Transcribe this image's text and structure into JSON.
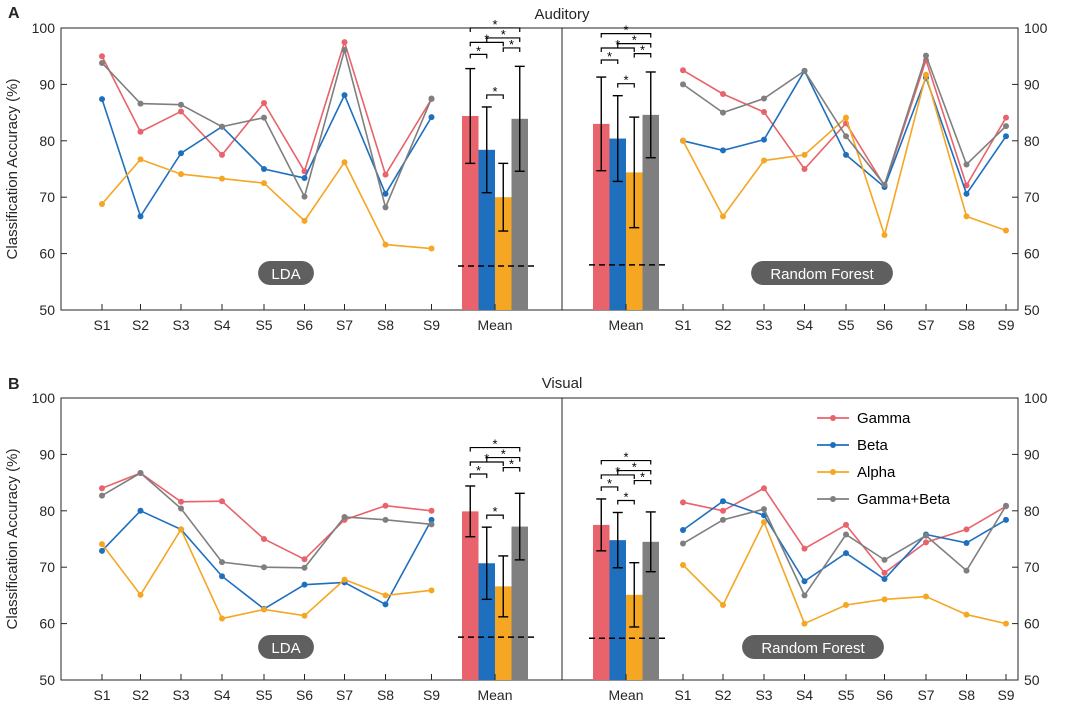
{
  "colors": {
    "Gamma": "#e8636b",
    "Beta": "#1f6fbf",
    "Alpha": "#f5a623",
    "Gamma+Beta": "#7f7f7f",
    "tag_bg": "#5f5f5f"
  },
  "star_symbol": "*",
  "legend": [
    "Gamma",
    "Beta",
    "Alpha",
    "Gamma+Beta"
  ],
  "chart_data": [
    {
      "type": "line",
      "panel_label": "A",
      "title": "Auditory",
      "ylabel": "Classification Accuracy (%)",
      "ylim": [
        50,
        100
      ],
      "yticks": [
        50,
        60,
        70,
        80,
        90,
        100
      ],
      "left": {
        "tag": "LDA",
        "categories": [
          "S1",
          "S2",
          "S3",
          "S4",
          "S5",
          "S6",
          "S7",
          "S8",
          "S9"
        ],
        "series": [
          {
            "name": "Gamma",
            "values": [
              95,
              81.6,
              85.2,
              77.5,
              86.7,
              74.6,
              97.5,
              74,
              87.4
            ]
          },
          {
            "name": "Beta",
            "values": [
              87.4,
              66.6,
              77.8,
              82.5,
              75,
              73.4,
              88.1,
              70.6,
              84.2
            ]
          },
          {
            "name": "Alpha",
            "values": [
              68.8,
              76.7,
              74.1,
              73.3,
              72.5,
              65.8,
              76.2,
              61.6,
              60.9
            ]
          },
          {
            "name": "Gamma+Beta",
            "values": [
              93.8,
              86.6,
              86.4,
              82.5,
              84.1,
              70.1,
              96.1,
              68.2,
              87.5
            ]
          }
        ],
        "mean": {
          "label": "Mean",
          "series": [
            {
              "name": "Gamma",
              "value": 84.4,
              "err": 8.4
            },
            {
              "name": "Beta",
              "value": 78.4,
              "err": 7.6
            },
            {
              "name": "Alpha",
              "value": 70,
              "err": 6
            },
            {
              "name": "Gamma+Beta",
              "value": 83.9,
              "err": 9.3
            }
          ],
          "chance": 57.8,
          "significance": [
            [
              0,
              1
            ],
            [
              0,
              2
            ],
            [
              0,
              3
            ],
            [
              1,
              2
            ],
            [
              1,
              3
            ],
            [
              2,
              3
            ]
          ]
        }
      },
      "right": {
        "tag": "Random Forest",
        "categories": [
          "S1",
          "S2",
          "S3",
          "S4",
          "S5",
          "S6",
          "S7",
          "S8",
          "S9"
        ],
        "series": [
          {
            "name": "Gamma",
            "values": [
              92.5,
              88.3,
              85.1,
              75,
              83.1,
              72,
              94.3,
              72.1,
              84.1
            ]
          },
          {
            "name": "Beta",
            "values": [
              80,
              78.3,
              80.2,
              92.4,
              77.5,
              71.8,
              91.2,
              70.6,
              80.8
            ]
          },
          {
            "name": "Alpha",
            "values": [
              80,
              66.6,
              76.5,
              77.5,
              84.1,
              63.3,
              91.7,
              66.6,
              64.1
            ]
          },
          {
            "name": "Gamma+Beta",
            "values": [
              90,
              85,
              87.5,
              92.4,
              80.8,
              72.2,
              95.1,
              75.8,
              82.6
            ]
          }
        ],
        "mean": {
          "label": "Mean",
          "series": [
            {
              "name": "Gamma",
              "value": 83,
              "err": 8.3
            },
            {
              "name": "Beta",
              "value": 80.4,
              "err": 7.6
            },
            {
              "name": "Alpha",
              "value": 74.4,
              "err": 9.8
            },
            {
              "name": "Gamma+Beta",
              "value": 84.6,
              "err": 7.6
            }
          ],
          "chance": 58,
          "significance": [
            [
              0,
              1
            ],
            [
              0,
              2
            ],
            [
              0,
              3
            ],
            [
              1,
              2
            ],
            [
              1,
              3
            ],
            [
              2,
              3
            ]
          ]
        }
      }
    },
    {
      "type": "line",
      "panel_label": "B",
      "title": "Visual",
      "ylabel": "Classification Accuracy (%)",
      "ylim": [
        50,
        100
      ],
      "yticks": [
        50,
        60,
        70,
        80,
        90,
        100
      ],
      "left": {
        "tag": "LDA",
        "categories": [
          "S1",
          "S2",
          "S3",
          "S4",
          "S5",
          "S6",
          "S7",
          "S8",
          "S9"
        ],
        "series": [
          {
            "name": "Gamma",
            "values": [
              84,
              86.7,
              81.6,
              81.7,
              75,
              71.4,
              78.4,
              80.9,
              80
            ]
          },
          {
            "name": "Beta",
            "values": [
              72.9,
              80,
              76.7,
              68.4,
              62.6,
              66.9,
              67.3,
              63.4,
              78.4
            ]
          },
          {
            "name": "Alpha",
            "values": [
              74.1,
              65.1,
              76.7,
              60.9,
              62.5,
              61.4,
              67.8,
              65,
              65.9
            ]
          },
          {
            "name": "Gamma+Beta",
            "values": [
              82.7,
              86.7,
              80.4,
              70.9,
              70,
              69.9,
              78.9,
              78.4,
              77.6
            ]
          }
        ],
        "mean": {
          "label": "Mean",
          "series": [
            {
              "name": "Gamma",
              "value": 79.9,
              "err": 4.5
            },
            {
              "name": "Beta",
              "value": 70.7,
              "err": 6.4
            },
            {
              "name": "Alpha",
              "value": 66.6,
              "err": 5.4
            },
            {
              "name": "Gamma+Beta",
              "value": 77.2,
              "err": 5.9
            }
          ],
          "chance": 57.6,
          "significance": [
            [
              0,
              1
            ],
            [
              0,
              2
            ],
            [
              0,
              3
            ],
            [
              1,
              2
            ],
            [
              1,
              3
            ],
            [
              2,
              3
            ]
          ]
        }
      },
      "right": {
        "tag": "Random Forest",
        "categories": [
          "S1",
          "S2",
          "S3",
          "S4",
          "S5",
          "S6",
          "S7",
          "S8",
          "S9"
        ],
        "series": [
          {
            "name": "Gamma",
            "values": [
              81.5,
              80,
              84,
              73.3,
              77.5,
              69,
              74.4,
              76.7,
              80.8
            ]
          },
          {
            "name": "Beta",
            "values": [
              76.6,
              81.7,
              79.2,
              67.5,
              72.5,
              67.9,
              75.8,
              74.3,
              78.4
            ]
          },
          {
            "name": "Alpha",
            "values": [
              70.4,
              63.3,
              78,
              60,
              63.3,
              64.3,
              64.8,
              61.6,
              60
            ]
          },
          {
            "name": "Gamma+Beta",
            "values": [
              74.2,
              78.4,
              80.3,
              65,
              75.8,
              71.3,
              75.6,
              69.4,
              80.9
            ]
          }
        ],
        "mean": {
          "label": "Mean",
          "series": [
            {
              "name": "Gamma",
              "value": 77.5,
              "err": 4.6
            },
            {
              "name": "Beta",
              "value": 74.8,
              "err": 4.9
            },
            {
              "name": "Alpha",
              "value": 65.1,
              "err": 5.7
            },
            {
              "name": "Gamma+Beta",
              "value": 74.5,
              "err": 5.3
            }
          ],
          "chance": 57.4,
          "significance": [
            [
              0,
              1
            ],
            [
              0,
              2
            ],
            [
              0,
              3
            ],
            [
              1,
              2
            ],
            [
              1,
              3
            ],
            [
              2,
              3
            ]
          ]
        }
      }
    }
  ]
}
